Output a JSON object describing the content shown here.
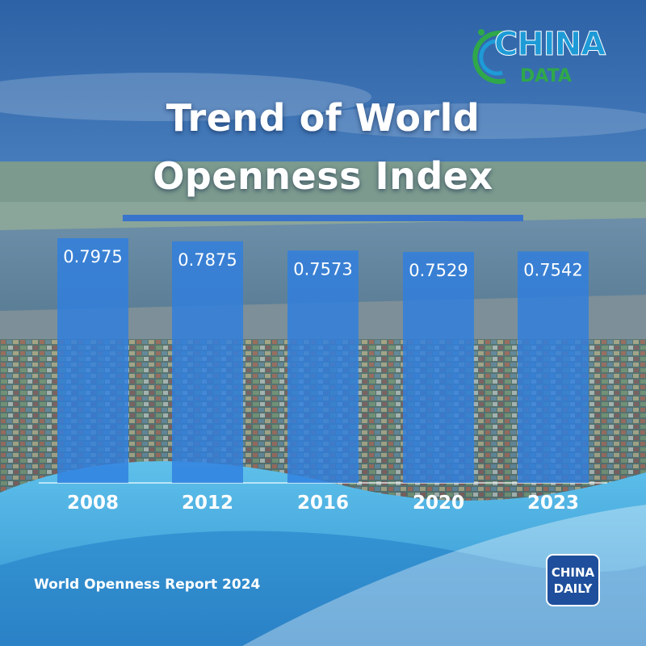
{
  "chart_data": {
    "type": "bar",
    "title": "Trend of World Openness Index",
    "title_lines": [
      "Trend of World",
      "Openness Index"
    ],
    "categories": [
      "2008",
      "2012",
      "2016",
      "2020",
      "2023"
    ],
    "values": [
      0.7975,
      0.7875,
      0.7573,
      0.7529,
      0.7542
    ],
    "value_labels": [
      "0.7975",
      "0.7875",
      "0.7573",
      "0.7529",
      "0.7542"
    ],
    "xlabel": "",
    "ylabel": "",
    "grid": false,
    "legend": "none",
    "bar_color": "#2f7fdf"
  },
  "source": "World Openness Report 2024",
  "logos": {
    "top_right": {
      "line1": "CHINA",
      "line2": "DATA",
      "colors": {
        "china": "#1e9bd7",
        "data": "#2fa84a"
      }
    },
    "bottom_right": {
      "line1": "CHINA",
      "line2": "DAILY",
      "color": "#1f4f9c"
    }
  },
  "colors": {
    "sky": "#3f7fc3",
    "bar": "#2f7fdf",
    "wave": "#3aa3df"
  }
}
